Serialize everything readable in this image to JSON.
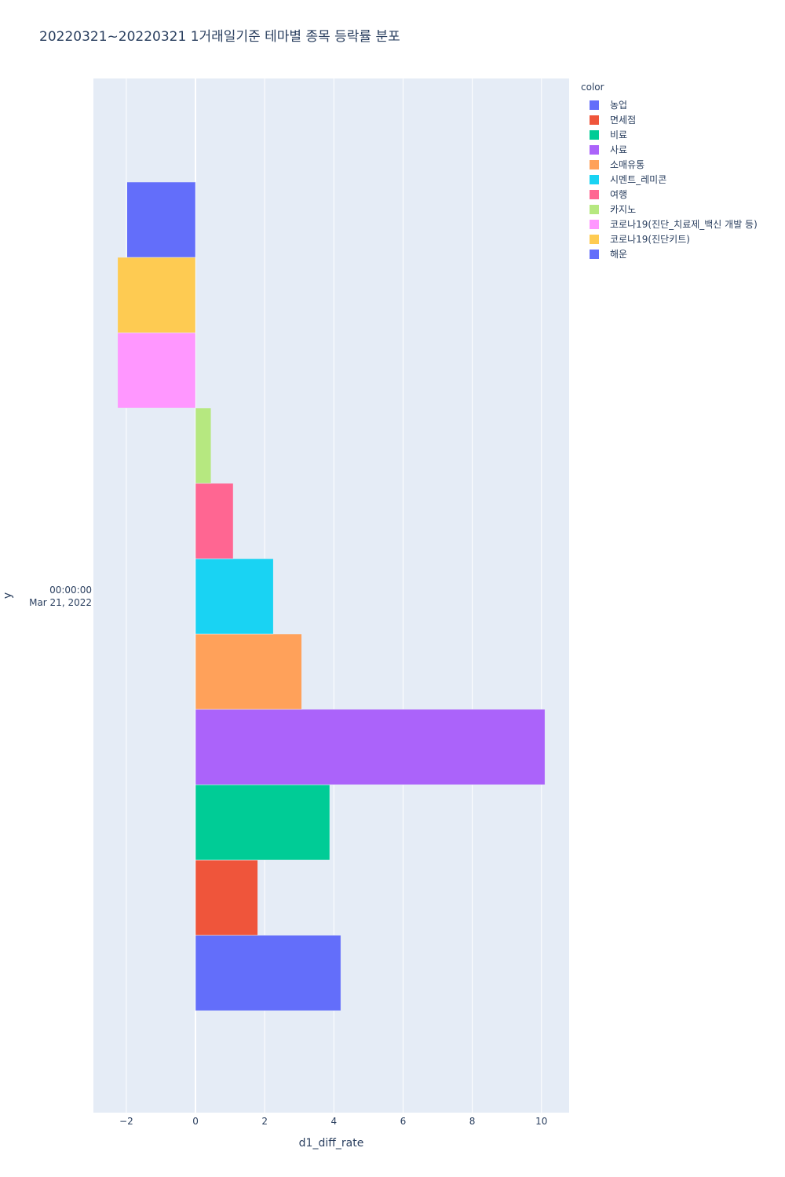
{
  "chart_data": {
    "type": "bar",
    "orientation": "horizontal",
    "title": "20220321~20220321 1거래일기준 테마별 종목 등락률 분포",
    "xlabel": "d1_diff_rate",
    "ylabel": "y",
    "y_category": [
      "00:00:00",
      "Mar 21, 2022"
    ],
    "xlim": [
      -2.95,
      10.8
    ],
    "x_ticks": [
      {
        "value": -2,
        "label": "−2"
      },
      {
        "value": 0,
        "label": "0"
      },
      {
        "value": 2,
        "label": "2"
      },
      {
        "value": 4,
        "label": "4"
      },
      {
        "value": 6,
        "label": "6"
      },
      {
        "value": 8,
        "label": "8"
      },
      {
        "value": 10,
        "label": "10"
      }
    ],
    "legend_title": "color",
    "legend_position": "right",
    "grid": true,
    "series": [
      {
        "name": "농업",
        "value": 4.2,
        "color": "#636efa"
      },
      {
        "name": "면세점",
        "value": 1.8,
        "color": "#ef553b"
      },
      {
        "name": "비료",
        "value": 3.88,
        "color": "#00cc96"
      },
      {
        "name": "사료",
        "value": 10.1,
        "color": "#ab63fa"
      },
      {
        "name": "소매유통",
        "value": 3.07,
        "color": "#ffa15a"
      },
      {
        "name": "시멘트_레미콘",
        "value": 2.25,
        "color": "#19d3f3"
      },
      {
        "name": "여행",
        "value": 1.09,
        "color": "#ff6692"
      },
      {
        "name": "카지노",
        "value": 0.45,
        "color": "#b6e880"
      },
      {
        "name": "코로나19(진단_치료제_백신 개발 등)",
        "value": -2.25,
        "color": "#ff97ff"
      },
      {
        "name": "코로나19(진단키트)",
        "value": -2.25,
        "color": "#fecb52"
      },
      {
        "name": "해운",
        "value": -1.98,
        "color": "#636efa"
      }
    ]
  }
}
